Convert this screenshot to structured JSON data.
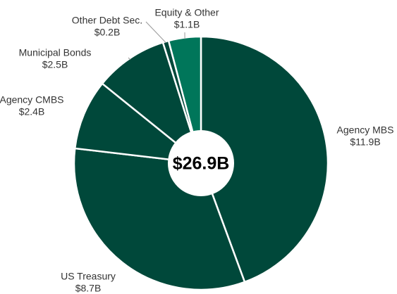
{
  "chart_data": {
    "type": "donut",
    "categories": [
      "Agency MBS",
      "US Treasury",
      "Agency CMBS",
      "Municipal Bonds",
      "Other Debt Sec.",
      "Equity & Other"
    ],
    "values": [
      11.9,
      8.7,
      2.4,
      2.5,
      0.2,
      1.1
    ],
    "value_labels": [
      "$11.9B",
      "$8.7B",
      "$2.4B",
      "$2.5B",
      "$0.2B",
      "$1.1B"
    ],
    "colors": [
      "#00483a",
      "#00483a",
      "#00483a",
      "#00483a",
      "#00483a",
      "#00765a"
    ],
    "center_label": "$26.9B"
  }
}
